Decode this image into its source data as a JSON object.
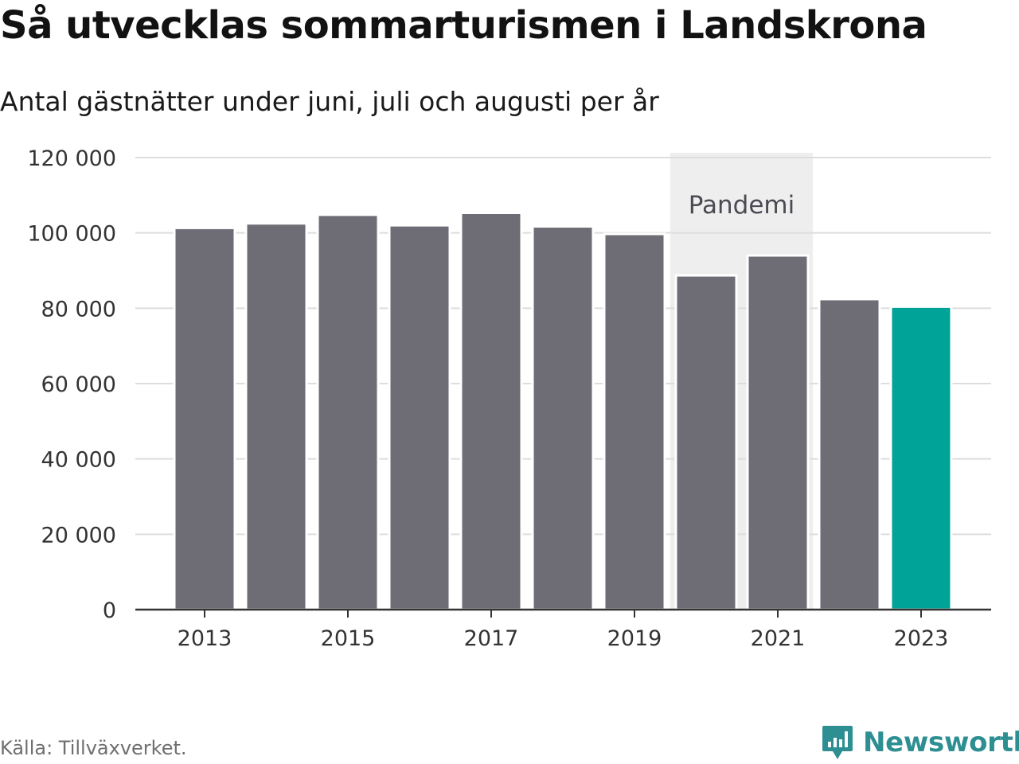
{
  "header": {
    "title": "Så utvecklas sommarturismen i Landskrona",
    "subtitle": "Antal gästnätter under juni, juli och augusti per år"
  },
  "footer": {
    "source": "Källa: Tillväxverket.",
    "brand": "Newsworthy",
    "brand_icon": "newsworthy-logo-icon"
  },
  "colors": {
    "bar": "#6e6d75",
    "highlight": "#00a398",
    "band": "#eeeeee",
    "grid": "#dddddd",
    "axis": "#333333",
    "brand": "#2e8f93"
  },
  "chart_data": {
    "type": "bar",
    "categories": [
      "2013",
      "2014",
      "2015",
      "2016",
      "2017",
      "2018",
      "2019",
      "2020",
      "2021",
      "2022",
      "2023"
    ],
    "values": [
      101000,
      102200,
      104500,
      101700,
      105000,
      101400,
      99400,
      88400,
      93700,
      82100,
      80100
    ],
    "highlight_category": "2023",
    "ylim": [
      0,
      120000
    ],
    "yticks": [
      0,
      20000,
      40000,
      60000,
      80000,
      100000,
      120000
    ],
    "ytick_labels": [
      "0",
      "20 000",
      "40 000",
      "60 000",
      "80 000",
      "100 000",
      "120 000"
    ],
    "xtick_labels": [
      "2013",
      "2015",
      "2017",
      "2019",
      "2021",
      "2023"
    ],
    "grid": true,
    "annotation_band": {
      "label": "Pandemi",
      "from": "2020",
      "to": "2021"
    },
    "xlabel": "",
    "ylabel": ""
  }
}
